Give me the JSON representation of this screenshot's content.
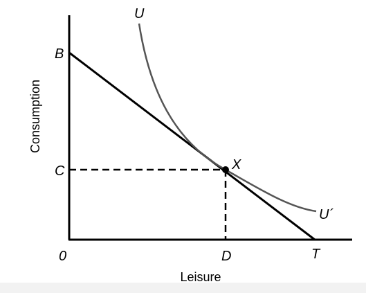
{
  "figure": {
    "y_axis_title": "Consumption",
    "x_axis_title": "Leisure",
    "origin_label": "0",
    "y_intercept_label": "B",
    "y_level_label": "C",
    "x_level_label": "D",
    "x_intercept_label": "T",
    "point_label": "X",
    "curve_top_label": "U",
    "curve_end_label": "U´",
    "colors": {
      "line": "#000000",
      "curve": "#555555",
      "background": "#ffffff",
      "bottom_strip": "#f2f2f2"
    }
  }
}
